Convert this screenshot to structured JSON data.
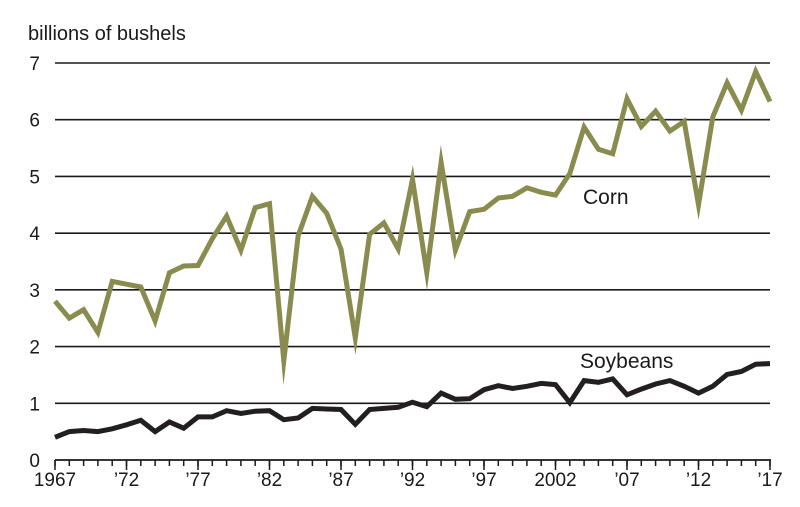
{
  "chart_data": {
    "type": "line",
    "ylabel": "billions of bushels",
    "ylim": [
      0,
      7
    ],
    "yticks": [
      0,
      1,
      2,
      3,
      4,
      5,
      6,
      7
    ],
    "xlim": [
      1967,
      2017
    ],
    "xticks": [
      {
        "value": 1967,
        "label": "1967"
      },
      {
        "value": 1972,
        "label": "’72"
      },
      {
        "value": 1977,
        "label": "’77"
      },
      {
        "value": 1982,
        "label": "’82"
      },
      {
        "value": 1987,
        "label": "’87"
      },
      {
        "value": 1992,
        "label": "’92"
      },
      {
        "value": 1997,
        "label": "’97"
      },
      {
        "value": 2002,
        "label": "2002"
      },
      {
        "value": 2007,
        "label": "’07"
      },
      {
        "value": 2012,
        "label": "’12"
      },
      {
        "value": 2017,
        "label": "’17"
      }
    ],
    "grid": true,
    "x": [
      1967,
      1968,
      1969,
      1970,
      1971,
      1972,
      1973,
      1974,
      1975,
      1976,
      1977,
      1978,
      1979,
      1980,
      1981,
      1982,
      1983,
      1984,
      1985,
      1986,
      1987,
      1988,
      1989,
      1990,
      1991,
      1992,
      1993,
      1994,
      1995,
      1996,
      1997,
      1998,
      1999,
      2000,
      2001,
      2002,
      2003,
      2004,
      2005,
      2006,
      2007,
      2008,
      2009,
      2010,
      2011,
      2012,
      2013,
      2014,
      2015,
      2016,
      2017
    ],
    "series": [
      {
        "name": "Corn",
        "color": "#8a8c4f",
        "values": [
          2.8,
          2.5,
          2.65,
          2.25,
          3.15,
          3.1,
          3.05,
          2.45,
          3.3,
          3.42,
          3.43,
          3.9,
          4.3,
          3.7,
          4.45,
          4.52,
          1.75,
          3.95,
          4.65,
          4.35,
          3.72,
          2.15,
          3.98,
          4.18,
          3.72,
          4.95,
          3.3,
          5.25,
          3.7,
          4.38,
          4.42,
          4.62,
          4.65,
          4.8,
          4.72,
          4.67,
          5.05,
          5.87,
          5.48,
          5.4,
          6.37,
          5.88,
          6.15,
          5.8,
          5.97,
          4.5,
          6.05,
          6.65,
          6.17,
          6.85,
          6.32
        ]
      },
      {
        "name": "Soybeans",
        "color": "#231f20",
        "values": [
          0.4,
          0.5,
          0.52,
          0.5,
          0.55,
          0.62,
          0.7,
          0.5,
          0.67,
          0.56,
          0.76,
          0.76,
          0.87,
          0.82,
          0.86,
          0.87,
          0.71,
          0.74,
          0.91,
          0.9,
          0.89,
          0.63,
          0.89,
          0.91,
          0.93,
          1.02,
          0.94,
          1.18,
          1.07,
          1.08,
          1.24,
          1.31,
          1.26,
          1.3,
          1.35,
          1.33,
          1.01,
          1.4,
          1.37,
          1.43,
          1.15,
          1.25,
          1.34,
          1.4,
          1.3,
          1.18,
          1.3,
          1.51,
          1.56,
          1.69,
          1.7
        ]
      }
    ]
  }
}
